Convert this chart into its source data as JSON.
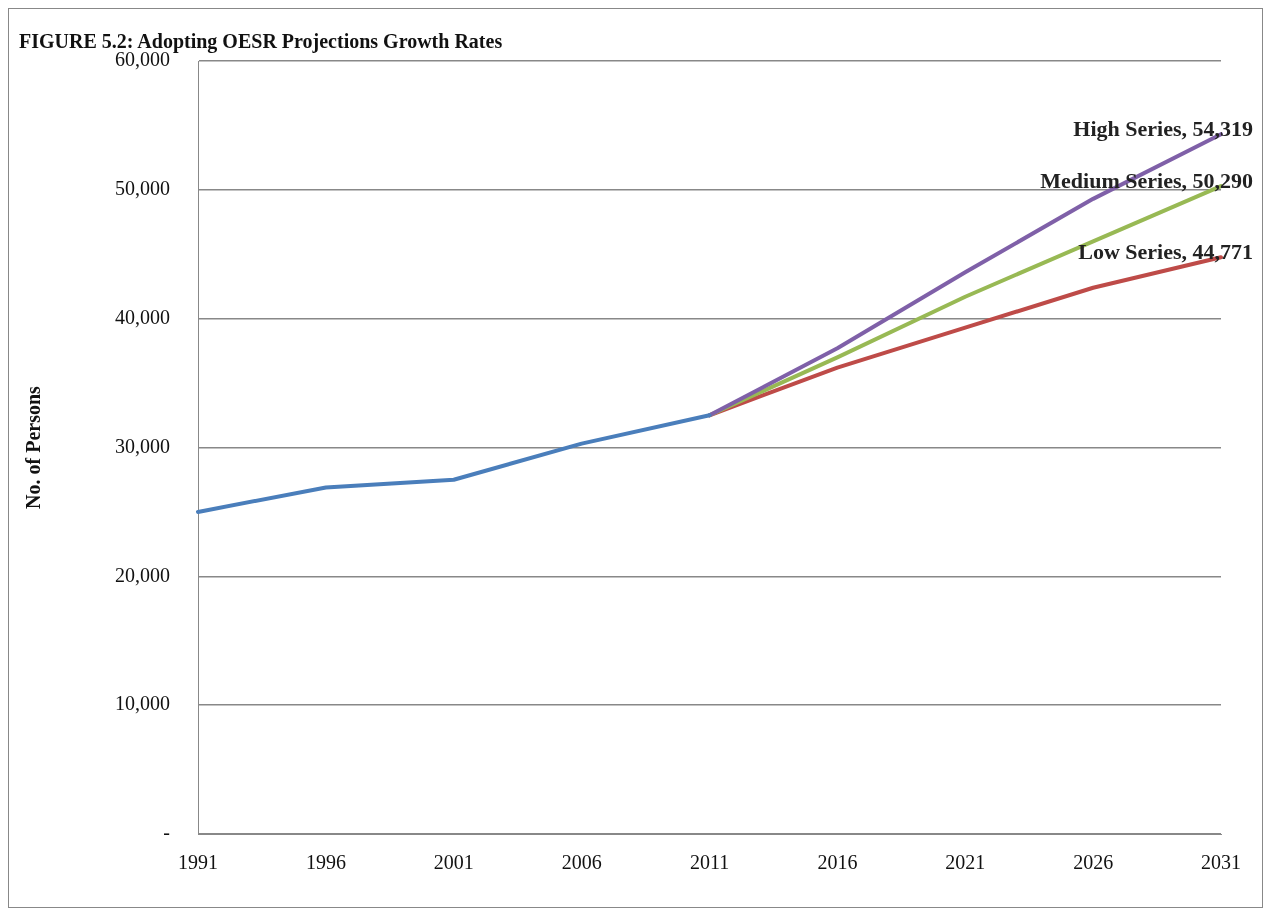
{
  "chart_data": {
    "type": "line",
    "title": "FIGURE 5.2: Adopting OESR Projections Growth Rates",
    "ylabel": "No. of Persons",
    "categories": [
      "1991",
      "1996",
      "2001",
      "2006",
      "2011",
      "2016",
      "2021",
      "2026",
      "2031"
    ],
    "series": [
      {
        "color": "#4a7ebb",
        "values": [
          25000,
          26900,
          27500,
          30300,
          32500,
          null,
          null,
          null,
          null
        ]
      },
      {
        "color": "#7f60a8",
        "values": [
          null,
          null,
          null,
          null,
          32500,
          37700,
          43600,
          49300,
          54319
        ],
        "value_labels": [
          null,
          null,
          null,
          null,
          null,
          null,
          null,
          null,
          "High Series, 54,319"
        ]
      },
      {
        "color": "#98b954",
        "values": [
          null,
          null,
          null,
          null,
          32500,
          37000,
          41700,
          46000,
          50290
        ],
        "value_labels": [
          null,
          null,
          null,
          null,
          null,
          null,
          null,
          null,
          "Medium Series, 50,290"
        ]
      },
      {
        "color": "#be4b48",
        "values": [
          null,
          null,
          null,
          null,
          32500,
          36200,
          39300,
          42400,
          44771
        ],
        "value_labels": [
          null,
          null,
          null,
          null,
          null,
          null,
          null,
          null,
          "Low Series, 44,771"
        ]
      }
    ],
    "ylim": [
      0,
      60000
    ],
    "yticks": [
      {
        "value": 0,
        "label": "-"
      },
      {
        "value": 10000,
        "label": "10,000"
      },
      {
        "value": 20000,
        "label": "20,000"
      },
      {
        "value": 30000,
        "label": "30,000"
      },
      {
        "value": 40000,
        "label": "40,000"
      },
      {
        "value": 50000,
        "label": "50,000"
      },
      {
        "value": 60000,
        "label": "60,000"
      }
    ],
    "grid": "y",
    "legend": false,
    "marker": "none",
    "line_style": "solid"
  }
}
